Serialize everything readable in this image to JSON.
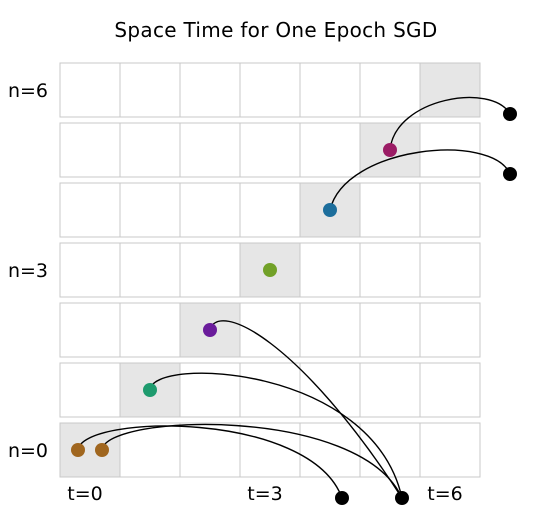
{
  "title": "Space Time for One Epoch SGD",
  "row_labels": [
    {
      "text": "n=6",
      "row": 6
    },
    {
      "text": "n=3",
      "row": 3
    },
    {
      "text": "n=0",
      "row": 0
    }
  ],
  "column_labels": [
    {
      "text": "t=0",
      "col": 0
    },
    {
      "text": "t=3",
      "col": 3
    },
    {
      "text": "t=6",
      "col": 6
    }
  ],
  "grid": {
    "rows": 7,
    "columns": 7,
    "highlighted_cells": [
      {
        "n": 0,
        "t": 0
      },
      {
        "n": 1,
        "t": 1
      },
      {
        "n": 2,
        "t": 2
      },
      {
        "n": 3,
        "t": 3
      },
      {
        "n": 4,
        "t": 4
      },
      {
        "n": 5,
        "t": 5
      },
      {
        "n": 6,
        "t": 6
      }
    ]
  },
  "colors": {
    "cell_border": "#c8c8c8",
    "highlight_fill": "#e6e6e6",
    "endpoint": "#000000",
    "arrow": "#000000"
  },
  "nodes": [
    {
      "id": "n0a",
      "color": "#a0661f"
    },
    {
      "id": "n0b",
      "color": "#a0661f"
    },
    {
      "id": "n1",
      "color": "#1e9b6e"
    },
    {
      "id": "n2",
      "color": "#6a1c9b"
    },
    {
      "id": "n3",
      "color": "#72a128"
    },
    {
      "id": "n4",
      "color": "#1d6e9c"
    },
    {
      "id": "n5",
      "color": "#9b1c65"
    }
  ],
  "endpoints": [
    {
      "id": "e1"
    },
    {
      "id": "e2"
    },
    {
      "id": "e3"
    },
    {
      "id": "e4"
    }
  ],
  "arrows": [
    {
      "from": "n0a",
      "to": "e1"
    },
    {
      "from": "n0b",
      "to": "e2"
    },
    {
      "from": "n1",
      "to": "e2"
    },
    {
      "from": "n2",
      "to": "e2"
    },
    {
      "from": "n4",
      "to": "e3"
    },
    {
      "from": "n5",
      "to": "e4"
    }
  ]
}
